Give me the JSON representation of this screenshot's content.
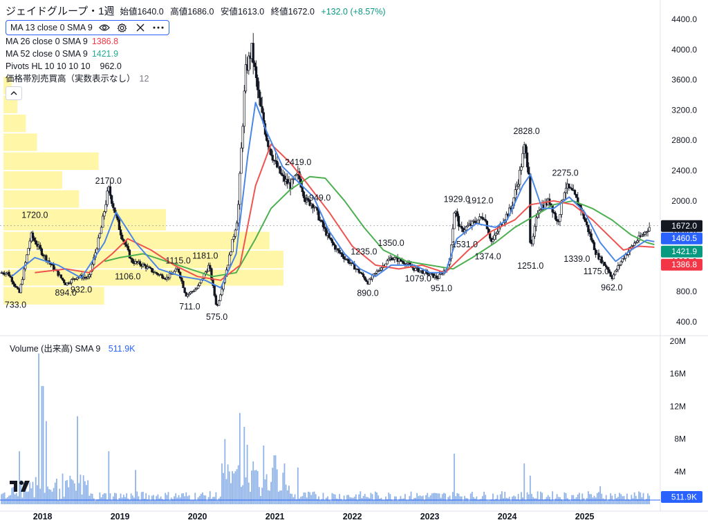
{
  "header": {
    "symbol": "ジェイドグループ・1週",
    "open_label": "始値",
    "open": "1640.0",
    "high_label": "高値",
    "high": "1686.0",
    "low_label": "安値",
    "low": "1613.0",
    "close_label": "終値",
    "close": "1672.0",
    "change": "+132.0 (+8.57%)"
  },
  "indicators": {
    "ma13": "MA 13 close 0 SMA 9",
    "ma26": "MA 26 close 0 SMA 9",
    "ma26_value": "1386.8",
    "ma52": "MA 52 close 0 SMA 9",
    "ma52_value": "1421.9",
    "pivots": "Pivots HL 10 10 10 10",
    "pivots_value": "962.0",
    "volume_profile": "価格帯別売買高（実数表示なし）",
    "volume_profile_value": "12"
  },
  "volume_legend": {
    "label": "Volume (出来高)",
    "ma": "SMA 9",
    "value": "511.9K"
  },
  "colors": {
    "up": "#089981",
    "candle": "#131722",
    "ma13": "#2962ff",
    "ma26": "#f23645",
    "ma52": "#22ab94",
    "vprofile": "#fff59d",
    "volume": "#90b4e8"
  },
  "icons": [
    "eye-icon",
    "gear-icon",
    "close-icon",
    "more-icon",
    "chevron-up-icon",
    "tradingview-logo"
  ],
  "chart_data": {
    "type": "candlestick",
    "price_axis": {
      "min": 400,
      "max": 4400,
      "ticks": [
        "4400.0",
        "4000.0",
        "3600.0",
        "3200.0",
        "2800.0",
        "2400.0",
        "2000.0",
        "1600.0",
        "1200.0",
        "800.0",
        "400.0"
      ]
    },
    "volume_axis": {
      "max": 20,
      "ticks": [
        "20M",
        "16M",
        "12M",
        "8M",
        "4M"
      ]
    },
    "x_ticks": [
      "2018",
      "2019",
      "2020",
      "2021",
      "2022",
      "2023",
      "2024",
      "2025"
    ],
    "last_price": "1672.0",
    "price_tags": [
      {
        "label": "1672.0",
        "value": 1672,
        "color": "#131722"
      },
      {
        "label": "1460.5",
        "value": 1460.5,
        "color": "#2962ff"
      },
      {
        "label": "1421.9",
        "value": 1421.9,
        "color": "#089981"
      },
      {
        "label": "1386.8",
        "value": 1386.8,
        "color": "#f23645"
      }
    ],
    "volume_tag": "511.9K",
    "pivots": [
      {
        "label": "733.0",
        "t": 2017.65,
        "v": 733,
        "pos": "low"
      },
      {
        "label": "1720.0",
        "t": 2017.9,
        "v": 1720,
        "pos": "high"
      },
      {
        "label": "894.0",
        "t": 2018.3,
        "v": 894,
        "pos": "low"
      },
      {
        "label": "932.0",
        "t": 2018.5,
        "v": 932,
        "pos": "low"
      },
      {
        "label": "2170.0",
        "t": 2018.85,
        "v": 2170,
        "pos": "high"
      },
      {
        "label": "1106.0",
        "t": 2019.1,
        "v": 1106,
        "pos": "low"
      },
      {
        "label": "1115.0",
        "t": 2019.75,
        "v": 1115,
        "pos": "high"
      },
      {
        "label": "711.0",
        "t": 2019.9,
        "v": 711,
        "pos": "low"
      },
      {
        "label": "1181.0",
        "t": 2020.1,
        "v": 1181,
        "pos": "high"
      },
      {
        "label": "575.0",
        "t": 2020.25,
        "v": 575,
        "pos": "low"
      },
      {
        "label": "2419.0",
        "t": 2021.3,
        "v": 2419,
        "pos": "high"
      },
      {
        "label": "1949.0",
        "t": 2021.55,
        "v": 1949,
        "pos": "high"
      },
      {
        "label": "1235.0",
        "t": 2022.15,
        "v": 1235,
        "pos": "high"
      },
      {
        "label": "1350.0",
        "t": 2022.5,
        "v": 1350,
        "pos": "high"
      },
      {
        "label": "890.0",
        "t": 2022.2,
        "v": 890,
        "pos": "low"
      },
      {
        "label": "1079.0",
        "t": 2022.85,
        "v": 1079,
        "pos": "low"
      },
      {
        "label": "951.0",
        "t": 2023.15,
        "v": 951,
        "pos": "low"
      },
      {
        "label": "1929.0",
        "t": 2023.35,
        "v": 1929,
        "pos": "high"
      },
      {
        "label": "1912.0",
        "t": 2023.65,
        "v": 1912,
        "pos": "high"
      },
      {
        "label": "1531.0",
        "t": 2023.45,
        "v": 1531,
        "pos": "low"
      },
      {
        "label": "1374.0",
        "t": 2023.75,
        "v": 1374,
        "pos": "low"
      },
      {
        "label": "2828.0",
        "t": 2024.25,
        "v": 2828,
        "pos": "high"
      },
      {
        "label": "1251.0",
        "t": 2024.3,
        "v": 1251,
        "pos": "low"
      },
      {
        "label": "2275.0",
        "t": 2024.75,
        "v": 2275,
        "pos": "high"
      },
      {
        "label": "1339.0",
        "t": 2024.9,
        "v": 1339,
        "pos": "low"
      },
      {
        "label": "1175.0",
        "t": 2025.15,
        "v": 1175,
        "pos": "low"
      },
      {
        "label": "962.0",
        "t": 2025.35,
        "v": 962,
        "pos": "low"
      }
    ],
    "price_path": [
      [
        2017.55,
        1050
      ],
      [
        2017.7,
        780
      ],
      [
        2017.85,
        1550
      ],
      [
        2018.0,
        1300
      ],
      [
        2018.15,
        1100
      ],
      [
        2018.3,
        900
      ],
      [
        2018.45,
        1000
      ],
      [
        2018.6,
        980
      ],
      [
        2018.75,
        1600
      ],
      [
        2018.85,
        2170
      ],
      [
        2019.0,
        1600
      ],
      [
        2019.15,
        1200
      ],
      [
        2019.3,
        1150
      ],
      [
        2019.45,
        1050
      ],
      [
        2019.6,
        980
      ],
      [
        2019.75,
        1100
      ],
      [
        2019.85,
        750
      ],
      [
        2020.0,
        850
      ],
      [
        2020.15,
        1150
      ],
      [
        2020.25,
        580
      ],
      [
        2020.4,
        1200
      ],
      [
        2020.52,
        1800
      ],
      [
        2020.62,
        3700
      ],
      [
        2020.7,
        4000
      ],
      [
        2020.8,
        3300
      ],
      [
        2020.9,
        2800
      ],
      [
        2021.0,
        2500
      ],
      [
        2021.1,
        2300
      ],
      [
        2021.2,
        2200
      ],
      [
        2021.3,
        2350
      ],
      [
        2021.4,
        2000
      ],
      [
        2021.5,
        1950
      ],
      [
        2021.6,
        1700
      ],
      [
        2021.7,
        1500
      ],
      [
        2021.8,
        1350
      ],
      [
        2021.9,
        1250
      ],
      [
        2022.0,
        1150
      ],
      [
        2022.1,
        1050
      ],
      [
        2022.2,
        920
      ],
      [
        2022.35,
        1100
      ],
      [
        2022.5,
        1250
      ],
      [
        2022.65,
        1200
      ],
      [
        2022.8,
        1100
      ],
      [
        2022.95,
        1050
      ],
      [
        2023.1,
        980
      ],
      [
        2023.25,
        1150
      ],
      [
        2023.32,
        1900
      ],
      [
        2023.4,
        1600
      ],
      [
        2023.55,
        1700
      ],
      [
        2023.7,
        1800
      ],
      [
        2023.8,
        1450
      ],
      [
        2023.95,
        1750
      ],
      [
        2024.05,
        1900
      ],
      [
        2024.15,
        2300
      ],
      [
        2024.22,
        2700
      ],
      [
        2024.28,
        2400
      ],
      [
        2024.3,
        1300
      ],
      [
        2024.4,
        1900
      ],
      [
        2024.55,
        2000
      ],
      [
        2024.65,
        1700
      ],
      [
        2024.75,
        2200
      ],
      [
        2024.85,
        2100
      ],
      [
        2024.95,
        1900
      ],
      [
        2025.05,
        1600
      ],
      [
        2025.15,
        1300
      ],
      [
        2025.3,
        1100
      ],
      [
        2025.35,
        980
      ],
      [
        2025.5,
        1250
      ],
      [
        2025.65,
        1450
      ],
      [
        2025.75,
        1550
      ],
      [
        2025.85,
        1672
      ]
    ],
    "ma13_path": [
      [
        2017.6,
        1000
      ],
      [
        2017.9,
        1250
      ],
      [
        2018.2,
        1150
      ],
      [
        2018.5,
        980
      ],
      [
        2018.8,
        1450
      ],
      [
        2018.95,
        1850
      ],
      [
        2019.2,
        1450
      ],
      [
        2019.5,
        1100
      ],
      [
        2019.8,
        1000
      ],
      [
        2020.1,
        950
      ],
      [
        2020.3,
        850
      ],
      [
        2020.5,
        1300
      ],
      [
        2020.65,
        2600
      ],
      [
        2020.75,
        3300
      ],
      [
        2020.9,
        2900
      ],
      [
        2021.1,
        2450
      ],
      [
        2021.3,
        2250
      ],
      [
        2021.5,
        2050
      ],
      [
        2021.7,
        1600
      ],
      [
        2021.9,
        1300
      ],
      [
        2022.1,
        1100
      ],
      [
        2022.3,
        1000
      ],
      [
        2022.5,
        1150
      ],
      [
        2022.8,
        1150
      ],
      [
        2023.0,
        1050
      ],
      [
        2023.2,
        1050
      ],
      [
        2023.35,
        1500
      ],
      [
        2023.6,
        1700
      ],
      [
        2023.85,
        1650
      ],
      [
        2024.0,
        1750
      ],
      [
        2024.2,
        2200
      ],
      [
        2024.3,
        2350
      ],
      [
        2024.45,
        1900
      ],
      [
        2024.6,
        1900
      ],
      [
        2024.8,
        2050
      ],
      [
        2025.0,
        1850
      ],
      [
        2025.2,
        1450
      ],
      [
        2025.4,
        1200
      ],
      [
        2025.6,
        1350
      ],
      [
        2025.8,
        1480
      ],
      [
        2025.9,
        1460
      ]
    ],
    "ma26_path": [
      [
        2017.9,
        1050
      ],
      [
        2018.3,
        1100
      ],
      [
        2018.6,
        1050
      ],
      [
        2018.9,
        1300
      ],
      [
        2019.1,
        1500
      ],
      [
        2019.4,
        1350
      ],
      [
        2019.7,
        1150
      ],
      [
        2020.0,
        1000
      ],
      [
        2020.3,
        950
      ],
      [
        2020.55,
        1150
      ],
      [
        2020.75,
        2200
      ],
      [
        2020.95,
        2750
      ],
      [
        2021.2,
        2500
      ],
      [
        2021.4,
        2250
      ],
      [
        2021.7,
        1850
      ],
      [
        2022.0,
        1400
      ],
      [
        2022.3,
        1150
      ],
      [
        2022.6,
        1100
      ],
      [
        2022.9,
        1150
      ],
      [
        2023.2,
        1050
      ],
      [
        2023.5,
        1350
      ],
      [
        2023.8,
        1600
      ],
      [
        2024.1,
        1750
      ],
      [
        2024.3,
        1950
      ],
      [
        2024.6,
        2000
      ],
      [
        2024.85,
        1950
      ],
      [
        2025.1,
        1750
      ],
      [
        2025.3,
        1550
      ],
      [
        2025.5,
        1350
      ],
      [
        2025.7,
        1400
      ],
      [
        2025.9,
        1387
      ]
    ],
    "ma52_path": [
      [
        2018.8,
        1200
      ],
      [
        2019.0,
        1250
      ],
      [
        2019.3,
        1300
      ],
      [
        2019.6,
        1200
      ],
      [
        2019.9,
        1100
      ],
      [
        2020.2,
        1000
      ],
      [
        2020.5,
        1050
      ],
      [
        2020.75,
        1500
      ],
      [
        2020.95,
        1900
      ],
      [
        2021.2,
        2150
      ],
      [
        2021.45,
        2320
      ],
      [
        2021.65,
        2300
      ],
      [
        2021.9,
        2000
      ],
      [
        2022.15,
        1650
      ],
      [
        2022.4,
        1350
      ],
      [
        2022.7,
        1200
      ],
      [
        2023.0,
        1150
      ],
      [
        2023.3,
        1100
      ],
      [
        2023.55,
        1250
      ],
      [
        2023.85,
        1450
      ],
      [
        2024.1,
        1650
      ],
      [
        2024.35,
        1800
      ],
      [
        2024.6,
        1950
      ],
      [
        2024.85,
        2000
      ],
      [
        2025.1,
        1900
      ],
      [
        2025.35,
        1750
      ],
      [
        2025.6,
        1550
      ],
      [
        2025.8,
        1450
      ],
      [
        2025.9,
        1422
      ]
    ],
    "volume_profile": [
      {
        "price_low": 500,
        "price_high": 600,
        "length": 0.0
      },
      {
        "price_low": 620,
        "price_high": 870,
        "length": 0.36
      },
      {
        "price_low": 870,
        "price_high": 1100,
        "length": 1.0
      },
      {
        "price_low": 1100,
        "price_high": 1350,
        "length": 1.0
      },
      {
        "price_low": 1350,
        "price_high": 1600,
        "length": 0.95
      },
      {
        "price_low": 1600,
        "price_high": 1900,
        "length": 0.58
      },
      {
        "price_low": 1900,
        "price_high": 2150,
        "length": 0.27
      },
      {
        "price_low": 2150,
        "price_high": 2400,
        "length": 0.21
      },
      {
        "price_low": 2400,
        "price_high": 2650,
        "length": 0.34
      },
      {
        "price_low": 2650,
        "price_high": 2900,
        "length": 0.12
      },
      {
        "price_low": 2900,
        "price_high": 3150,
        "length": 0.08
      },
      {
        "price_low": 3150,
        "price_high": 3400,
        "length": 0.05
      },
      {
        "price_low": 3400,
        "price_high": 3650,
        "length": 0.03
      }
    ],
    "volume_spikes": [
      {
        "t": 2017.7,
        "v": 6.5
      },
      {
        "t": 2017.95,
        "v": 18.5
      },
      {
        "t": 2018.0,
        "v": 14.5
      },
      {
        "t": 2018.05,
        "v": 10.2
      },
      {
        "t": 2018.45,
        "v": 10.8
      },
      {
        "t": 2018.85,
        "v": 6.5
      },
      {
        "t": 2019.2,
        "v": 4.2
      },
      {
        "t": 2020.35,
        "v": 8.0
      },
      {
        "t": 2020.55,
        "v": 11.2
      },
      {
        "t": 2020.6,
        "v": 9.5
      },
      {
        "t": 2020.65,
        "v": 7.3
      },
      {
        "t": 2020.85,
        "v": 7.2
      },
      {
        "t": 2021.0,
        "v": 6.0
      },
      {
        "t": 2021.3,
        "v": 4.5
      },
      {
        "t": 2023.32,
        "v": 6.2
      },
      {
        "t": 2024.22,
        "v": 5.0
      },
      {
        "t": 2024.3,
        "v": 3.5
      },
      {
        "t": 2025.2,
        "v": 2.2
      }
    ]
  }
}
